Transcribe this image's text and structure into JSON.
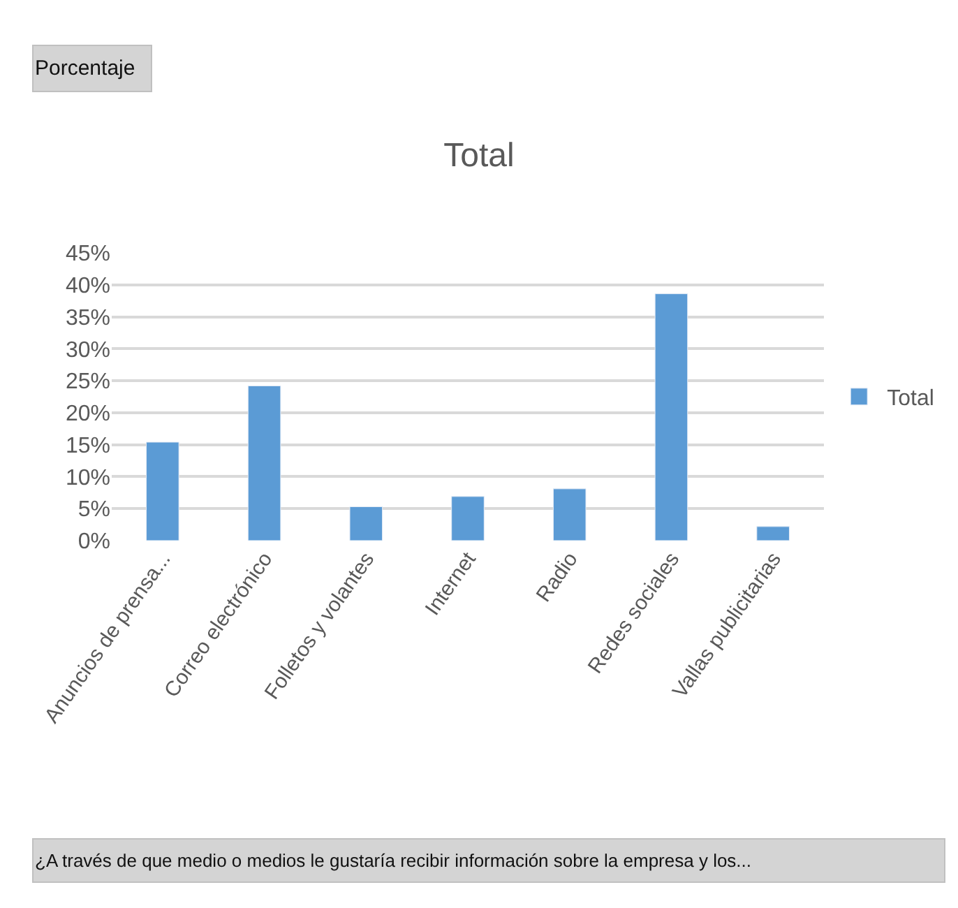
{
  "chart_data": {
    "type": "bar",
    "title": "Total",
    "categories": [
      "Anuncios de prensa...",
      "Correo electrónico",
      "Folletos y volantes",
      "Internet",
      "Radio",
      "Redes sociales",
      "Vallas publicitarias"
    ],
    "series": [
      {
        "name": "Total",
        "color": "#5b9bd5",
        "values": [
          15.4,
          24.2,
          5.3,
          6.9,
          8.1,
          38.6,
          2.2
        ]
      }
    ],
    "ylim": [
      0,
      45
    ],
    "yticks": [
      {
        "value": 0,
        "label": "0%"
      },
      {
        "value": 5,
        "label": "5%"
      },
      {
        "value": 10,
        "label": "10%"
      },
      {
        "value": 15,
        "label": "15%"
      },
      {
        "value": 20,
        "label": "20%"
      },
      {
        "value": 25,
        "label": "25%"
      },
      {
        "value": 30,
        "label": "30%"
      },
      {
        "value": 35,
        "label": "35%"
      },
      {
        "value": 40,
        "label": "40%"
      },
      {
        "value": 45,
        "label": "45%"
      }
    ],
    "grid": "y",
    "legend": "right",
    "annotations": [
      "Porcentaje",
      "¿A través de que medio o medios le gustaría recibir información sobre la empresa y los..."
    ]
  }
}
